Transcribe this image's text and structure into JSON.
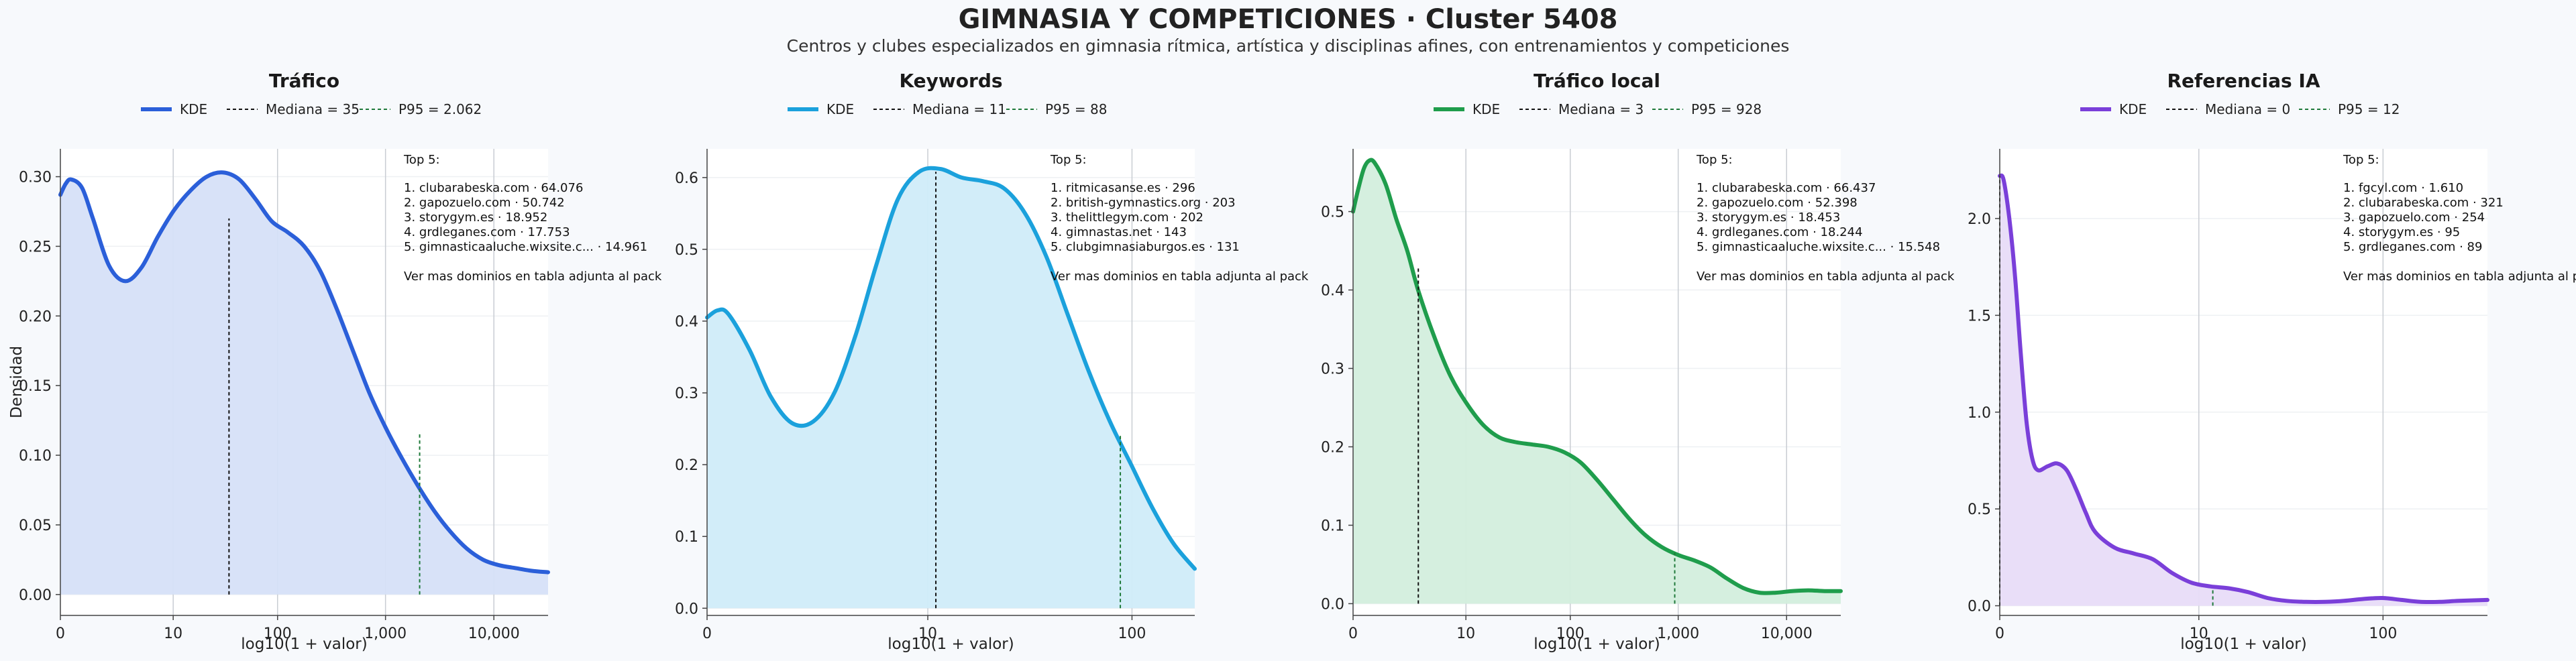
{
  "figure": {
    "title": "GIMNASIA Y COMPETICIONES · Cluster 5408",
    "subtitle": "Centros y clubes especializados en gimnasia rítmica, artística y disciplinas afines, con entrenamientos y competiciones"
  },
  "chart_data": [
    {
      "type": "area",
      "title": "Tráfico",
      "xlabel": "log10(1 + valor)",
      "ylabel": "Densidad",
      "color": "#2b5fd9",
      "fill": "#d6e0f8",
      "xlim": [
        0,
        4.5
      ],
      "ylim": [
        -0.015,
        0.32
      ],
      "xticks": [
        0,
        1.041,
        2.004,
        3.0,
        4.0
      ],
      "xticklabels": [
        "0",
        "10",
        "100",
        "1,000",
        "10,000"
      ],
      "yticks": [
        0,
        0.05,
        0.1,
        0.15,
        0.2,
        0.25,
        0.3
      ],
      "yticklabels": [
        "0.00",
        "0.05",
        "0.10",
        "0.15",
        "0.20",
        "0.25",
        "0.30"
      ],
      "legend": [
        "KDE",
        "Mediana = 35",
        "P95 = 2.062"
      ],
      "median": {
        "x": 1.556,
        "y": 0.27
      },
      "p95": {
        "x": 3.315,
        "y": 0.115
      },
      "kde": {
        "x": [
          0,
          0.05,
          0.1,
          0.2,
          0.3,
          0.45,
          0.6,
          0.75,
          0.9,
          1.05,
          1.2,
          1.35,
          1.5,
          1.65,
          1.8,
          1.95,
          2.1,
          2.25,
          2.4,
          2.55,
          2.7,
          2.85,
          3.0,
          3.15,
          3.3,
          3.45,
          3.6,
          3.75,
          3.9,
          4.05,
          4.2,
          4.35,
          4.5
        ],
        "y": [
          0.287,
          0.295,
          0.298,
          0.292,
          0.27,
          0.236,
          0.225,
          0.235,
          0.257,
          0.276,
          0.29,
          0.3,
          0.303,
          0.298,
          0.284,
          0.268,
          0.26,
          0.25,
          0.232,
          0.205,
          0.175,
          0.145,
          0.12,
          0.098,
          0.078,
          0.06,
          0.045,
          0.033,
          0.025,
          0.021,
          0.019,
          0.017,
          0.016
        ]
      },
      "top": {
        "heading": "Top 5:",
        "items": [
          "1. clubarabeska.com · 64.076",
          "2. gapozuelo.com · 50.742",
          "3. storygym.es · 18.952",
          "4. grdleganes.com · 17.753",
          "5. gimnasticaaluche.wixsite.c... · 14.961"
        ],
        "note": "Ver mas dominios en tabla adjunta al pack"
      }
    },
    {
      "type": "area",
      "title": "Keywords",
      "xlabel": "log10(1 + valor)",
      "ylabel": "",
      "color": "#1ba1dc",
      "fill": "#d0ecf9",
      "xlim": [
        0,
        2.3
      ],
      "ylim": [
        -0.01,
        0.64
      ],
      "xticks": [
        0,
        1.041,
        2.004
      ],
      "xticklabels": [
        "0",
        "10",
        "100"
      ],
      "yticks": [
        0,
        0.1,
        0.2,
        0.3,
        0.4,
        0.5,
        0.6
      ],
      "yticklabels": [
        "0.0",
        "0.1",
        "0.2",
        "0.3",
        "0.4",
        "0.5",
        "0.6"
      ],
      "legend": [
        "KDE",
        "Mediana = 11",
        "P95 = 88"
      ],
      "median": {
        "x": 1.079,
        "y": 0.608
      },
      "p95": {
        "x": 1.949,
        "y": 0.24
      },
      "kde": {
        "x": [
          0,
          0.05,
          0.1,
          0.2,
          0.3,
          0.4,
          0.5,
          0.6,
          0.7,
          0.8,
          0.9,
          1.0,
          1.1,
          1.2,
          1.3,
          1.4,
          1.5,
          1.6,
          1.7,
          1.8,
          1.9,
          2.0,
          2.1,
          2.2,
          2.3
        ],
        "y": [
          0.405,
          0.415,
          0.41,
          0.36,
          0.295,
          0.258,
          0.26,
          0.3,
          0.38,
          0.48,
          0.57,
          0.608,
          0.612,
          0.6,
          0.595,
          0.585,
          0.55,
          0.49,
          0.41,
          0.33,
          0.26,
          0.2,
          0.14,
          0.09,
          0.055
        ]
      },
      "top": {
        "heading": "Top 5:",
        "items": [
          "1. ritmicasanse.es · 296",
          "2. british-gymnastics.org · 203",
          "3. thelittlegym.com · 202",
          "4. gimnastas.net · 143",
          "5. clubgimnasiaburgos.es · 131"
        ],
        "note": "Ver mas dominios en tabla adjunta al pack"
      }
    },
    {
      "type": "area",
      "title": "Tráfico local",
      "xlabel": "log10(1 + valor)",
      "ylabel": "",
      "color": "#1f9d4c",
      "fill": "#d3eedd",
      "xlim": [
        0,
        4.5
      ],
      "ylim": [
        -0.015,
        0.58
      ],
      "xticks": [
        0,
        1.041,
        2.004,
        3.0,
        4.0
      ],
      "xticklabels": [
        "0",
        "10",
        "100",
        "1,000",
        "10,000"
      ],
      "yticks": [
        0,
        0.1,
        0.2,
        0.3,
        0.4,
        0.5
      ],
      "yticklabels": [
        "0.0",
        "0.1",
        "0.2",
        "0.3",
        "0.4",
        "0.5"
      ],
      "legend": [
        "KDE",
        "Mediana = 3",
        "P95 = 928"
      ],
      "median": {
        "x": 0.602,
        "y": 0.43
      },
      "p95": {
        "x": 2.968,
        "y": 0.065
      },
      "kde": {
        "x": [
          0,
          0.05,
          0.1,
          0.15,
          0.2,
          0.3,
          0.4,
          0.5,
          0.6,
          0.75,
          0.9,
          1.05,
          1.2,
          1.35,
          1.5,
          1.65,
          1.8,
          1.95,
          2.1,
          2.25,
          2.4,
          2.55,
          2.7,
          2.85,
          3.0,
          3.15,
          3.3,
          3.45,
          3.6,
          3.75,
          3.9,
          4.05,
          4.2,
          4.35,
          4.5
        ],
        "y": [
          0.5,
          0.53,
          0.555,
          0.565,
          0.562,
          0.535,
          0.49,
          0.45,
          0.4,
          0.34,
          0.29,
          0.255,
          0.228,
          0.212,
          0.206,
          0.203,
          0.2,
          0.193,
          0.18,
          0.158,
          0.133,
          0.108,
          0.087,
          0.072,
          0.062,
          0.055,
          0.046,
          0.032,
          0.02,
          0.014,
          0.014,
          0.016,
          0.017,
          0.016,
          0.016
        ]
      },
      "top": {
        "heading": "Top 5:",
        "items": [
          "1. clubarabeska.com · 66.437",
          "2. gapozuelo.com · 52.398",
          "3. storygym.es · 18.453",
          "4. grdleganes.com · 18.244",
          "5. gimnasticaaluche.wixsite.c... · 15.548"
        ],
        "note": "Ver mas dominios en tabla adjunta al pack"
      }
    },
    {
      "type": "area",
      "title": "Referencias IA",
      "xlabel": "log10(1 + valor)",
      "ylabel": "",
      "color": "#7a3fd9",
      "fill": "#e8dcf8",
      "xlim": [
        0,
        2.55
      ],
      "ylim": [
        -0.05,
        2.36
      ],
      "xticks": [
        0,
        1.041,
        2.004
      ],
      "xticklabels": [
        "0",
        "10",
        "100"
      ],
      "yticks": [
        0,
        0.5,
        1.0,
        1.5,
        2.0
      ],
      "yticklabels": [
        "0.0",
        "0.5",
        "1.0",
        "1.5",
        "2.0"
      ],
      "legend": [
        "KDE",
        "Mediana = 0",
        "P95 = 12"
      ],
      "median": {
        "x": 0,
        "y": 2.22
      },
      "p95": {
        "x": 1.114,
        "y": 0.09
      },
      "kde": {
        "x": [
          0,
          0.02,
          0.05,
          0.08,
          0.11,
          0.14,
          0.17,
          0.2,
          0.25,
          0.3,
          0.35,
          0.4,
          0.45,
          0.5,
          0.6,
          0.7,
          0.8,
          0.9,
          1.0,
          1.1,
          1.2,
          1.3,
          1.4,
          1.5,
          1.6,
          1.7,
          1.8,
          1.9,
          2.0,
          2.1,
          2.2,
          2.3,
          2.4,
          2.55
        ],
        "y": [
          2.22,
          2.2,
          2.0,
          1.7,
          1.3,
          0.95,
          0.76,
          0.7,
          0.72,
          0.735,
          0.7,
          0.6,
          0.48,
          0.38,
          0.3,
          0.27,
          0.24,
          0.17,
          0.12,
          0.1,
          0.09,
          0.07,
          0.04,
          0.025,
          0.02,
          0.02,
          0.025,
          0.035,
          0.04,
          0.03,
          0.02,
          0.02,
          0.025,
          0.03
        ]
      },
      "top": {
        "heading": "Top 5:",
        "items": [
          "1. fgcyl.com · 1.610",
          "2. clubarabeska.com · 321",
          "3. gapozuelo.com · 254",
          "4. storygym.es · 95",
          "5. grdleganes.com · 89"
        ],
        "note": "Ver mas dominios en tabla adjunta al pack"
      }
    }
  ]
}
